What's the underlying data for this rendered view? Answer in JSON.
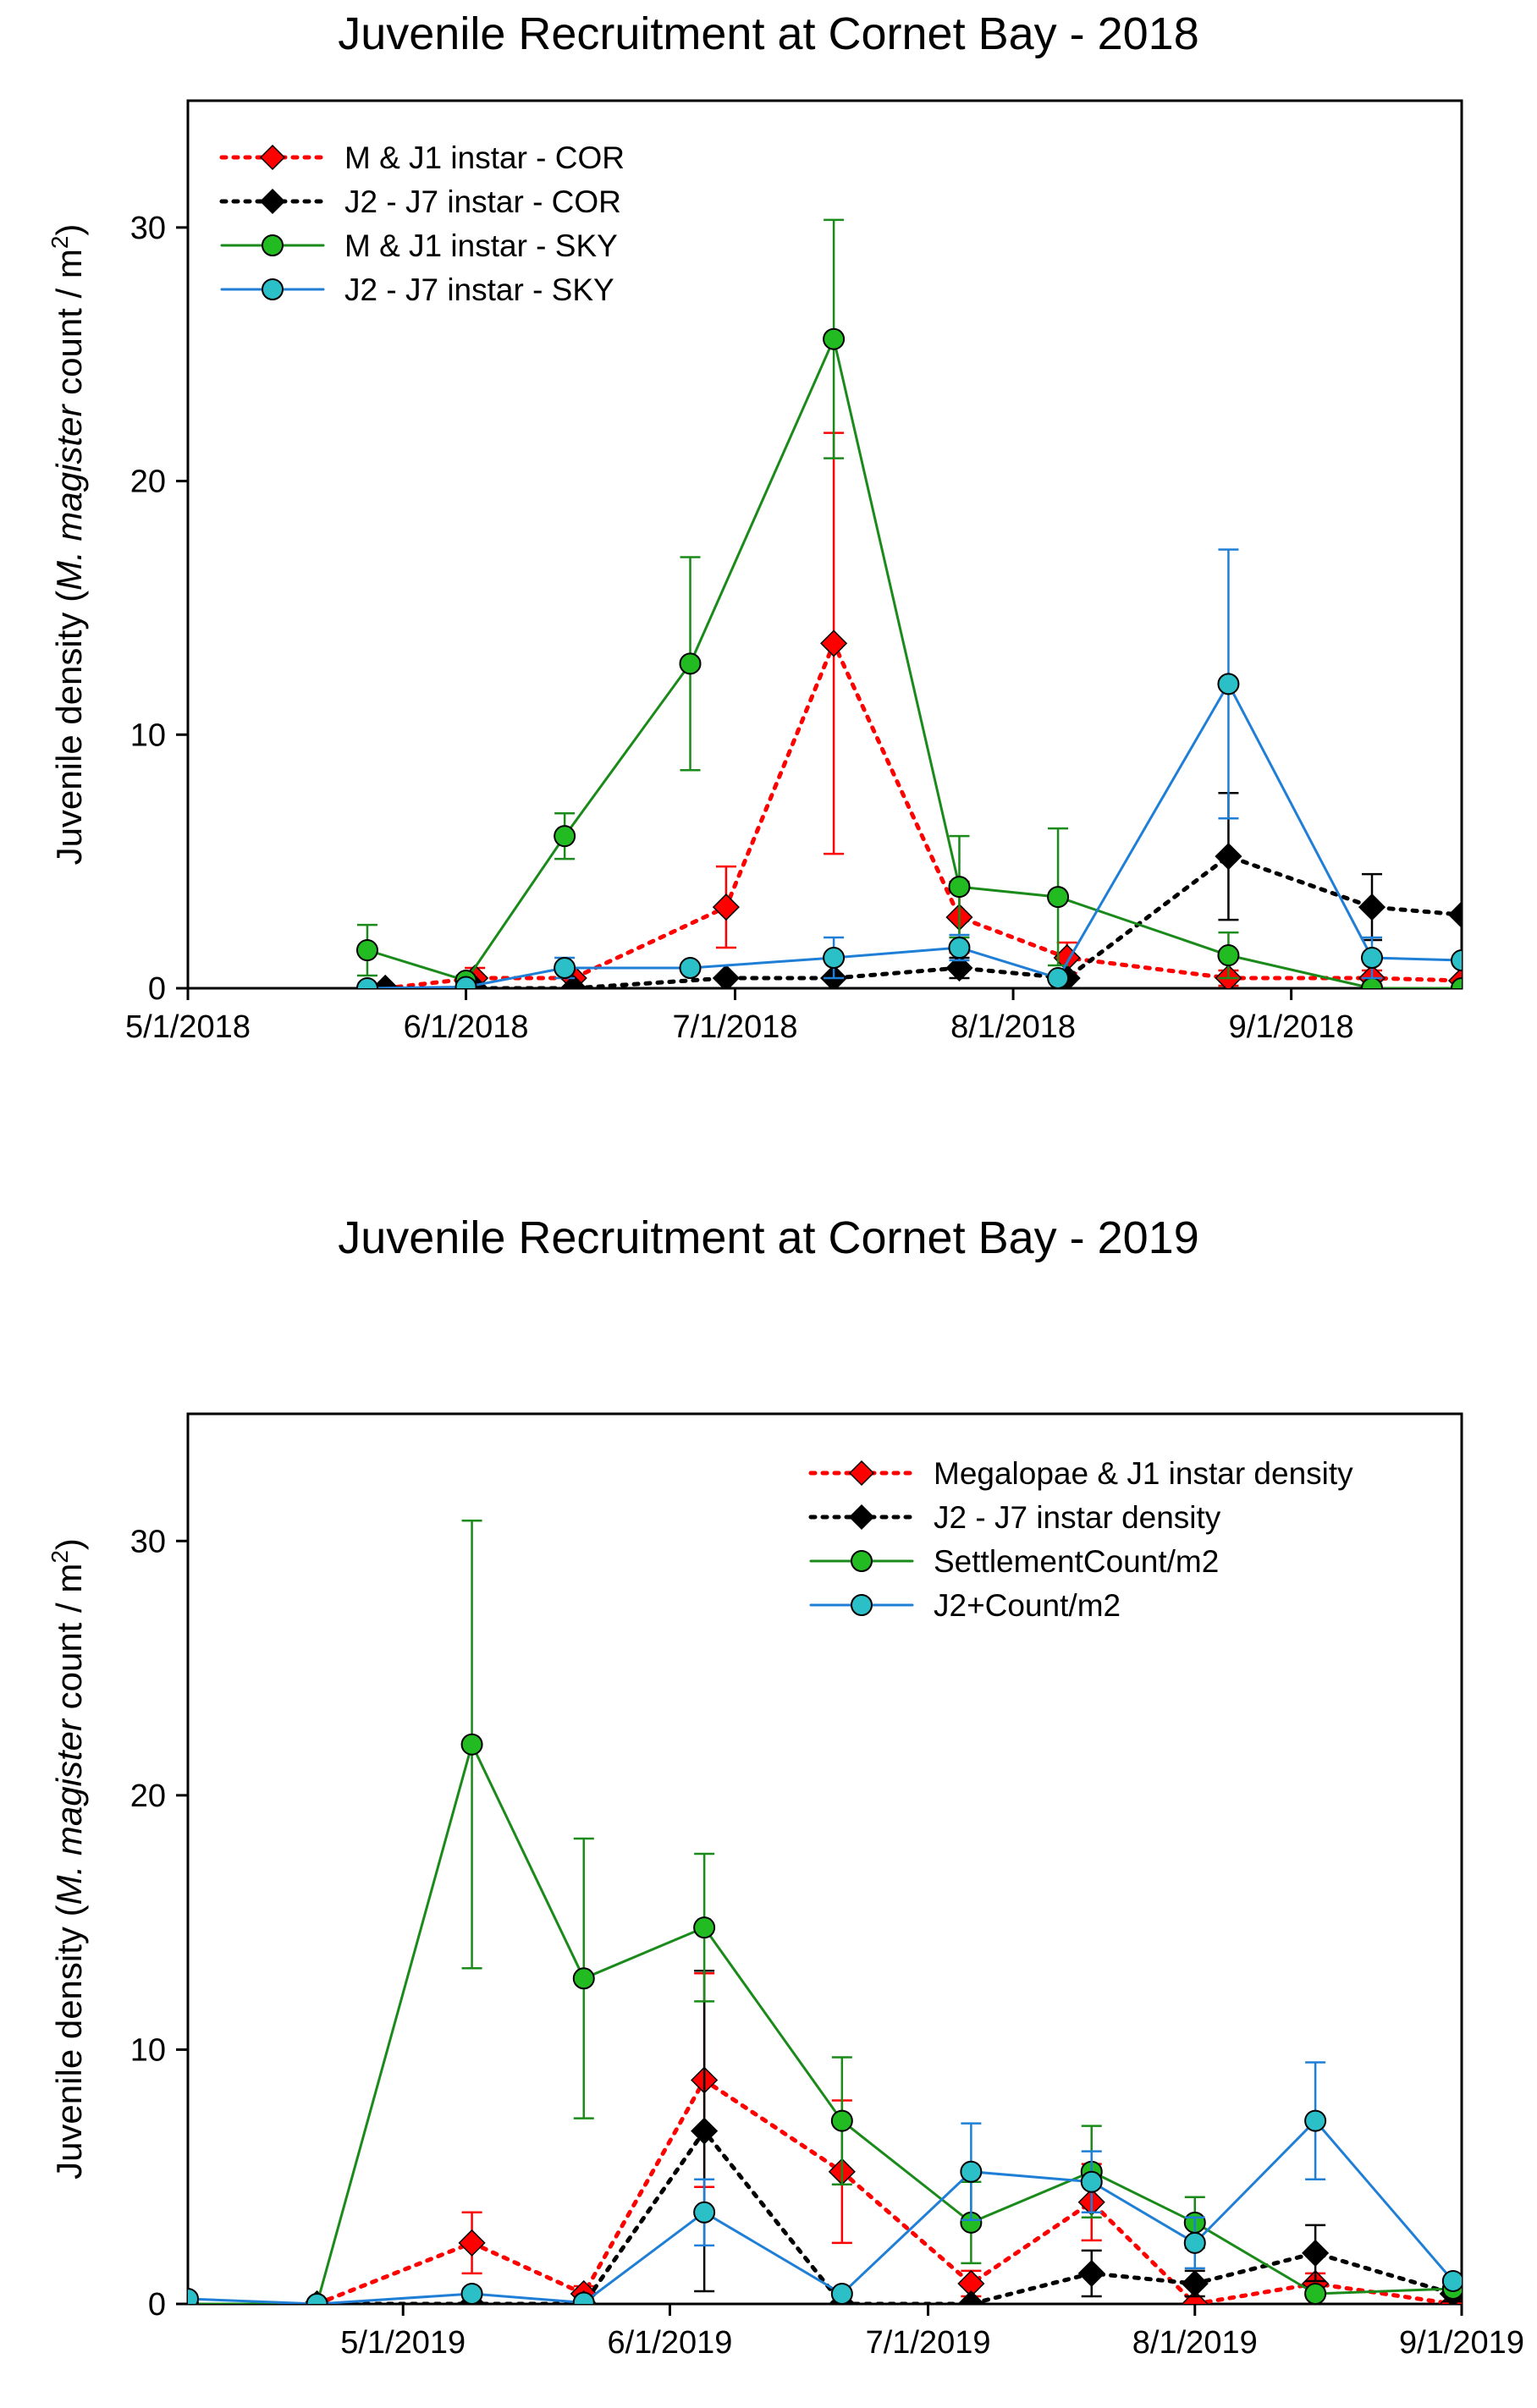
{
  "chart_data": [
    {
      "type": "line",
      "title": "Juvenile Recruitment at Cornet Bay - 2018",
      "ylabel": {
        "prefix": "Juvenile density (",
        "italic": "M. magister",
        "middle": " count / m",
        "sup": "2",
        "suffix": ")"
      },
      "xlabel": "",
      "xlim": [
        "2018-05-01",
        "2018-09-20"
      ],
      "ylim": [
        0,
        35
      ],
      "xticks": [
        {
          "date": "2018-05-01",
          "label": "5/1/2018"
        },
        {
          "date": "2018-06-01",
          "label": "6/1/2018"
        },
        {
          "date": "2018-07-01",
          "label": "7/1/2018"
        },
        {
          "date": "2018-08-01",
          "label": "8/1/2018"
        },
        {
          "date": "2018-09-01",
          "label": "9/1/2018"
        }
      ],
      "yticks": [
        0,
        10,
        20,
        30
      ],
      "grid": false,
      "legend_position": "top-left",
      "series": [
        {
          "name": "M & J1 instar - COR",
          "color": "#ff0000",
          "line_style": "dotted",
          "marker": "diamond",
          "points": [
            {
              "x": "2018-05-23",
              "y": 0
            },
            {
              "x": "2018-06-02",
              "y": 0.4,
              "err": 0.4
            },
            {
              "x": "2018-06-13",
              "y": 0.4
            },
            {
              "x": "2018-06-30",
              "y": 3.2,
              "err": 1.6
            },
            {
              "x": "2018-07-12",
              "y": 13.6,
              "err": 8.3
            },
            {
              "x": "2018-07-26",
              "y": 2.8,
              "err": 1.4
            },
            {
              "x": "2018-08-07",
              "y": 1.2,
              "err": 0.6
            },
            {
              "x": "2018-08-25",
              "y": 0.4,
              "err": 0.3
            },
            {
              "x": "2018-09-10",
              "y": 0.4,
              "err": 0.3
            },
            {
              "x": "2018-09-20",
              "y": 0.3
            }
          ]
        },
        {
          "name": "J2 - J7 instar - COR",
          "color": "#000000",
          "line_style": "dotted",
          "marker": "diamond",
          "points": [
            {
              "x": "2018-05-23",
              "y": 0
            },
            {
              "x": "2018-06-02",
              "y": 0
            },
            {
              "x": "2018-06-13",
              "y": 0
            },
            {
              "x": "2018-06-30",
              "y": 0.4
            },
            {
              "x": "2018-07-12",
              "y": 0.4
            },
            {
              "x": "2018-07-26",
              "y": 0.8,
              "err": 0.4
            },
            {
              "x": "2018-08-07",
              "y": 0.4
            },
            {
              "x": "2018-08-25",
              "y": 5.2,
              "err": 2.5
            },
            {
              "x": "2018-09-10",
              "y": 3.2,
              "err": 1.3
            },
            {
              "x": "2018-09-20",
              "y": 2.9
            }
          ]
        },
        {
          "name": "M & J1 instar - SKY",
          "color": "#1a8a1a",
          "marker_fill": "#22bb22",
          "line_style": "solid",
          "marker": "circle",
          "points": [
            {
              "x": "2018-05-21",
              "y": 1.5,
              "err": 1.0
            },
            {
              "x": "2018-06-01",
              "y": 0.3,
              "err": 0.2
            },
            {
              "x": "2018-06-12",
              "y": 6.0,
              "err": 0.9
            },
            {
              "x": "2018-06-26",
              "y": 12.8,
              "err": 4.2
            },
            {
              "x": "2018-07-12",
              "y": 25.6,
              "err": 4.7
            },
            {
              "x": "2018-07-26",
              "y": 4.0,
              "err": 2.0
            },
            {
              "x": "2018-08-06",
              "y": 3.6,
              "err": 2.7
            },
            {
              "x": "2018-08-25",
              "y": 1.3,
              "err": 0.9
            },
            {
              "x": "2018-09-10",
              "y": 0.0
            },
            {
              "x": "2018-09-20",
              "y": 0.0
            }
          ]
        },
        {
          "name": "J2 - J7 instar - SKY",
          "color": "#1f7fd6",
          "marker_fill": "#2bbfc8",
          "line_style": "solid",
          "marker": "circle",
          "points": [
            {
              "x": "2018-05-21",
              "y": 0
            },
            {
              "x": "2018-06-01",
              "y": 0.05
            },
            {
              "x": "2018-06-12",
              "y": 0.8,
              "err": 0.4
            },
            {
              "x": "2018-06-26",
              "y": 0.8
            },
            {
              "x": "2018-07-12",
              "y": 1.2,
              "err": 0.8
            },
            {
              "x": "2018-07-26",
              "y": 1.6,
              "err": 0.5
            },
            {
              "x": "2018-08-06",
              "y": 0.4
            },
            {
              "x": "2018-08-25",
              "y": 12.0,
              "err": 5.3
            },
            {
              "x": "2018-09-10",
              "y": 1.2,
              "err": 0.8
            },
            {
              "x": "2018-09-20",
              "y": 1.1
            }
          ]
        }
      ]
    },
    {
      "type": "line",
      "title": "Juvenile Recruitment at Cornet Bay - 2019",
      "ylabel": {
        "prefix": "Juvenile density (",
        "italic": "M. magister",
        "middle": " count / m",
        "sup": "2",
        "suffix": ")"
      },
      "xlabel": "",
      "xlim": [
        "2019-04-06",
        "2019-09-01"
      ],
      "ylim": [
        0,
        35
      ],
      "xticks": [
        {
          "date": "2019-05-01",
          "label": "5/1/2019"
        },
        {
          "date": "2019-06-01",
          "label": "6/1/2019"
        },
        {
          "date": "2019-07-01",
          "label": "7/1/2019"
        },
        {
          "date": "2019-08-01",
          "label": "8/1/2019"
        },
        {
          "date": "2019-09-01",
          "label": "9/1/2019"
        }
      ],
      "yticks": [
        0,
        10,
        20,
        30
      ],
      "grid": false,
      "legend_position": "top-right",
      "series": [
        {
          "name": "Megalopae & J1 instar density",
          "color": "#ff0000",
          "line_style": "dotted",
          "marker": "diamond",
          "points": [
            {
              "x": "2019-04-21",
              "y": 0
            },
            {
              "x": "2019-05-09",
              "y": 2.4,
              "err": 1.2
            },
            {
              "x": "2019-05-22",
              "y": 0.4,
              "err": 0.3
            },
            {
              "x": "2019-06-05",
              "y": 8.8,
              "err": 4.2
            },
            {
              "x": "2019-06-21",
              "y": 5.2,
              "err": 2.8
            },
            {
              "x": "2019-07-06",
              "y": 0.8,
              "err": 0.5
            },
            {
              "x": "2019-07-20",
              "y": 4.0,
              "err": 1.5
            },
            {
              "x": "2019-08-01",
              "y": 0.0
            },
            {
              "x": "2019-08-15",
              "y": 0.8,
              "err": 0.4
            },
            {
              "x": "2019-08-31",
              "y": 0.0
            }
          ]
        },
        {
          "name": "J2 - J7 instar density",
          "color": "#000000",
          "line_style": "dotted",
          "marker": "diamond",
          "points": [
            {
              "x": "2019-04-21",
              "y": 0
            },
            {
              "x": "2019-05-09",
              "y": 0
            },
            {
              "x": "2019-05-22",
              "y": 0
            },
            {
              "x": "2019-06-05",
              "y": 6.8,
              "err": 6.3
            },
            {
              "x": "2019-06-21",
              "y": 0
            },
            {
              "x": "2019-07-06",
              "y": 0
            },
            {
              "x": "2019-07-20",
              "y": 1.2,
              "err": 0.9
            },
            {
              "x": "2019-08-01",
              "y": 0.8,
              "err": 0.5
            },
            {
              "x": "2019-08-15",
              "y": 2.0,
              "err": 1.1
            },
            {
              "x": "2019-08-31",
              "y": 0.4,
              "err": 0.3
            }
          ]
        },
        {
          "name": "SettlementCount/m2",
          "color": "#1a8a1a",
          "marker_fill": "#22bb22",
          "line_style": "solid",
          "marker": "circle",
          "points": [
            {
              "x": "2019-04-06",
              "y": 0
            },
            {
              "x": "2019-04-21",
              "y": 0
            },
            {
              "x": "2019-05-09",
              "y": 22.0,
              "err": 8.8
            },
            {
              "x": "2019-05-22",
              "y": 12.8,
              "err": 5.5
            },
            {
              "x": "2019-06-05",
              "y": 14.8,
              "err": 2.9
            },
            {
              "x": "2019-06-21",
              "y": 7.2,
              "err": 2.5
            },
            {
              "x": "2019-07-06",
              "y": 3.2,
              "err": 1.6
            },
            {
              "x": "2019-07-20",
              "y": 5.2,
              "err": 1.8
            },
            {
              "x": "2019-08-01",
              "y": 3.2,
              "err": 1.0
            },
            {
              "x": "2019-08-15",
              "y": 0.4
            },
            {
              "x": "2019-08-31",
              "y": 0.6
            }
          ]
        },
        {
          "name": "J2+Count/m2",
          "color": "#1f7fd6",
          "marker_fill": "#2bbfc8",
          "line_style": "solid",
          "marker": "circle",
          "points": [
            {
              "x": "2019-04-06",
              "y": 0.2
            },
            {
              "x": "2019-04-21",
              "y": 0
            },
            {
              "x": "2019-05-09",
              "y": 0.4
            },
            {
              "x": "2019-05-22",
              "y": 0.05
            },
            {
              "x": "2019-06-05",
              "y": 3.6,
              "err": 1.3
            },
            {
              "x": "2019-06-21",
              "y": 0.4
            },
            {
              "x": "2019-07-06",
              "y": 5.2,
              "err": 1.9
            },
            {
              "x": "2019-07-20",
              "y": 4.8,
              "err": 1.2
            },
            {
              "x": "2019-08-01",
              "y": 2.4,
              "err": 1.0
            },
            {
              "x": "2019-08-15",
              "y": 7.2,
              "err": 2.3
            },
            {
              "x": "2019-08-31",
              "y": 0.9
            }
          ]
        }
      ]
    }
  ]
}
